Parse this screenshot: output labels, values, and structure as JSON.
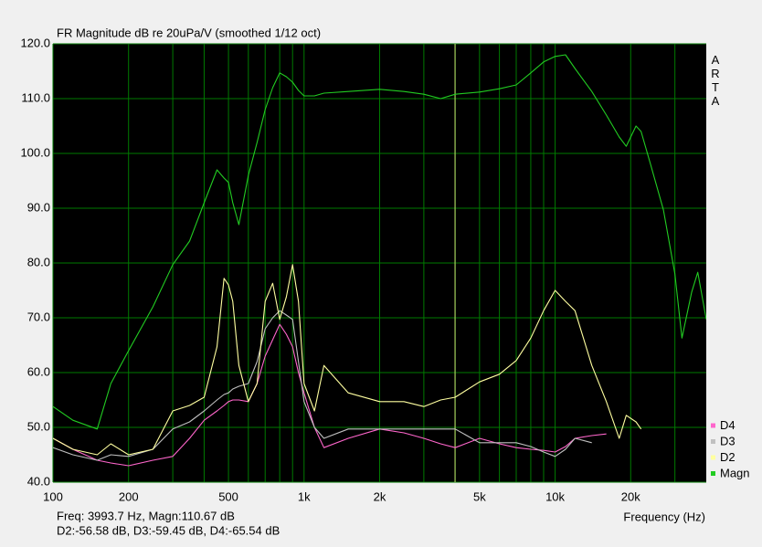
{
  "chart_data": {
    "type": "line",
    "title": "FR Magnitude dB re 20uPa/V (smoothed 1/12 oct)",
    "brand": "ARTA",
    "x_label": "Frequency (Hz)",
    "cursor_text": "Freq: 3993.7 Hz, Magn:110.67 dB",
    "cursor_distortion_text": "D2:-56.58 dB, D3:-59.45 dB, D4:-65.54 dB",
    "cursor_x": 3993.7,
    "log_x": true,
    "grid": true,
    "legend": "bottom-right",
    "xlim": [
      100,
      40000
    ],
    "ylim": [
      40,
      120
    ],
    "xticks": [
      100,
      200,
      500,
      {
        "value": 1000,
        "label": "1k"
      },
      {
        "value": 2000,
        "label": "2k"
      },
      {
        "value": 5000,
        "label": "5k"
      },
      {
        "value": 10000,
        "label": "10k"
      },
      {
        "value": 20000,
        "label": "20k"
      }
    ],
    "xminorticks": [
      300,
      400,
      600,
      700,
      800,
      900,
      3000,
      4000,
      6000,
      7000,
      8000,
      9000,
      30000
    ],
    "yticks": [
      {
        "value": 40,
        "label": "40.0"
      },
      {
        "value": 50,
        "label": "50.0"
      },
      {
        "value": 60,
        "label": "60.0"
      },
      {
        "value": 70,
        "label": "70.0"
      },
      {
        "value": 80,
        "label": "80.0"
      },
      {
        "value": 90,
        "label": "90.0"
      },
      {
        "value": 100,
        "label": "100.0"
      },
      {
        "value": 110,
        "label": "110.0"
      },
      {
        "value": 120,
        "label": "120.0"
      }
    ],
    "x": [
      100,
      120,
      150,
      170,
      200,
      250,
      300,
      350,
      400,
      450,
      480,
      500,
      520,
      550,
      600,
      650,
      700,
      750,
      800,
      850,
      900,
      950,
      1000,
      1100,
      1200,
      1500,
      2000,
      2500,
      3000,
      3500,
      4000,
      5000,
      6000,
      7000,
      8000,
      9000,
      10000,
      11000,
      12000,
      14000,
      16000,
      18000,
      19200,
      21000,
      22000,
      24000,
      27000,
      30000,
      32000,
      35000,
      37000,
      40000
    ],
    "series": [
      {
        "name": "D4",
        "color": "#ff66cc",
        "values": [
          48,
          46,
          44,
          43.5,
          43,
          44,
          44.7,
          48,
          51.3,
          53,
          54,
          54.7,
          55,
          55,
          54.7,
          58,
          63,
          66,
          68.8,
          67,
          64.7,
          60,
          56.3,
          50,
          46.3,
          48,
          49.7,
          49,
          48,
          47,
          46.3,
          48,
          47,
          46.3,
          46,
          45.8,
          45.5,
          46.5,
          48,
          48.5,
          48.8,
          null,
          null,
          null,
          null,
          null,
          null,
          null,
          null,
          null,
          null,
          null
        ]
      },
      {
        "name": "D3",
        "color": "#c0c0c0",
        "values": [
          46.3,
          45,
          44,
          45,
          44.7,
          46,
          49.7,
          51,
          53,
          55,
          56,
          56.3,
          57,
          57.5,
          58,
          62,
          68,
          70,
          71.3,
          70.5,
          69.7,
          62,
          54.7,
          50,
          48,
          49.7,
          49.7,
          49.7,
          49.7,
          49.7,
          49.7,
          47.2,
          47.2,
          47.2,
          46.5,
          45.5,
          44.7,
          46,
          48,
          47.2,
          null,
          null,
          null,
          null,
          null,
          null,
          null,
          null,
          null,
          null,
          null,
          null
        ]
      },
      {
        "name": "D2",
        "color": "#ffffa0",
        "values": [
          48,
          46,
          45,
          47,
          45,
          46,
          53,
          54,
          55.5,
          64.7,
          77.2,
          76,
          73,
          61.3,
          54.7,
          58,
          73,
          76.3,
          69.7,
          73.8,
          79.7,
          73,
          58,
          53,
          61.3,
          56.3,
          54.7,
          54.7,
          53.8,
          55,
          55.5,
          58.3,
          59.7,
          62.2,
          66.3,
          71.3,
          75,
          73,
          71.3,
          61.3,
          54.7,
          48,
          52.2,
          51,
          49.7,
          null,
          null,
          null,
          null,
          null,
          null,
          null
        ]
      },
      {
        "name": "Magn",
        "color": "#22cc22",
        "values": [
          53.8,
          51.3,
          49.7,
          58,
          64,
          72,
          79.7,
          84,
          91,
          97,
          95.5,
          94.7,
          91,
          87,
          96,
          102,
          108,
          112,
          114.7,
          114,
          113,
          111.5,
          110.5,
          110.5,
          111,
          111.3,
          111.7,
          111.3,
          110.8,
          110,
          110.8,
          111.2,
          111.8,
          112.5,
          114.7,
          116.7,
          117.7,
          118,
          115.5,
          111.3,
          107,
          103,
          101.3,
          105,
          104,
          98,
          89.7,
          78,
          66.3,
          74.7,
          78.3,
          69.7
        ]
      }
    ]
  }
}
